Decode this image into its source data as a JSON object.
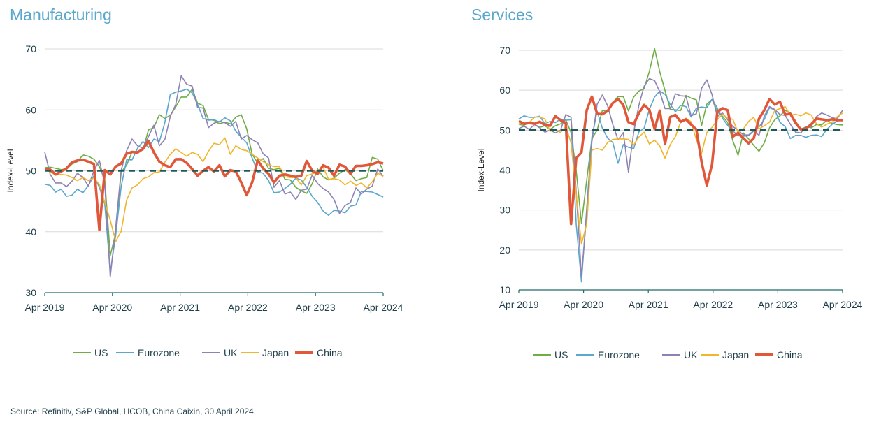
{
  "source": "Source: Refinitiv, S&P Global, HCOB, China Caixin, 30 April 2024.",
  "colors": {
    "US": "#70ad47",
    "Eurozone": "#5aa7cc",
    "UK": "#8e82b4",
    "Japan": "#f2b52b",
    "China": "#e0573a",
    "ref_line": "#1d5a5a",
    "grid": "#d9d9d9",
    "axis": "#1f6b6b"
  },
  "chart_data": [
    {
      "type": "line",
      "title": "Manufacturing",
      "ylabel": "Index-Level",
      "ylim": [
        30,
        70
      ],
      "yticks": [
        "30",
        "40",
        "50",
        "60",
        "70"
      ],
      "xticks": [
        "Apr 2019",
        "Apr 2020",
        "Apr 2021",
        "Apr 2022",
        "Apr 2023",
        "Apr 2024"
      ],
      "reference_line": 50,
      "x_note": "monthly, Apr 2019 to Apr 2024",
      "series": [
        {
          "name": "US",
          "values": [
            50.5,
            50.6,
            50.4,
            50.2,
            50.3,
            51.1,
            51.5,
            52.6,
            52.4,
            51.9,
            50.7,
            48.5,
            36.1,
            39.8,
            49.8,
            50.9,
            53.1,
            53.2,
            53.4,
            56.7,
            57.1,
            59.2,
            58.6,
            59.1,
            60.5,
            62.1,
            62.1,
            63.4,
            61.1,
            60.7,
            58.4,
            58.3,
            57.7,
            58.0,
            57.7,
            58.8,
            59.2,
            56.9,
            52.7,
            51.3,
            52.0,
            50.4,
            50.2,
            50.4,
            48.6,
            48.5,
            47.3,
            46.7,
            46.3,
            47.9,
            50.3,
            49.0,
            48.5,
            48.8,
            49.6,
            50.2,
            49.5,
            48.4,
            48.7,
            48.9,
            52.2,
            51.9,
            50.0
          ],
          "estimated": true
        },
        {
          "name": "Eurozone",
          "values": [
            47.8,
            47.6,
            46.5,
            47.0,
            45.8,
            46.0,
            47.0,
            46.4,
            47.6,
            49.2,
            47.3,
            44.5,
            33.4,
            39.4,
            47.4,
            51.8,
            51.8,
            53.7,
            54.8,
            53.8,
            55.2,
            54.8,
            57.9,
            62.5,
            62.9,
            63.1,
            63.4,
            62.8,
            60.9,
            58.6,
            58.3,
            58.4,
            58.0,
            58.7,
            58.2,
            56.5,
            55.5,
            54.6,
            52.1,
            49.8,
            49.6,
            48.4,
            46.4,
            46.5,
            47.1,
            47.8,
            48.8,
            48.5,
            47.3,
            45.8,
            44.8,
            43.4,
            42.7,
            43.5,
            43.4,
            43.1,
            44.2,
            44.4,
            46.6,
            46.6,
            46.5,
            46.1,
            45.7
          ],
          "estimated": true
        },
        {
          "name": "UK",
          "values": [
            53.1,
            49.4,
            48.0,
            48.0,
            47.4,
            48.3,
            49.6,
            48.9,
            47.5,
            50.0,
            51.7,
            47.8,
            32.6,
            40.7,
            50.1,
            53.3,
            55.2,
            54.1,
            53.7,
            55.6,
            57.5,
            54.1,
            55.1,
            58.9,
            60.9,
            65.6,
            64.2,
            63.9,
            60.4,
            60.3,
            57.1,
            57.8,
            58.1,
            57.9,
            57.3,
            58.1,
            55.2,
            55.8,
            55.1,
            54.6,
            52.8,
            52.1,
            47.3,
            48.4,
            46.2,
            46.5,
            45.3,
            46.8,
            47.0,
            49.3,
            47.9,
            47.1,
            46.5,
            45.3,
            43.0,
            44.3,
            44.8,
            47.2,
            46.2,
            47.0,
            47.5,
            50.3,
            49.1
          ],
          "estimated": true
        },
        {
          "name": "Japan",
          "values": [
            50.2,
            49.8,
            49.3,
            49.4,
            49.3,
            48.9,
            48.4,
            48.9,
            48.4,
            48.8,
            47.8,
            44.8,
            41.9,
            38.4,
            40.1,
            45.2,
            47.2,
            47.7,
            48.7,
            49.0,
            49.7,
            49.8,
            51.4,
            52.7,
            53.6,
            53.0,
            52.4,
            53.0,
            52.7,
            51.5,
            53.2,
            54.5,
            54.3,
            55.4,
            52.7,
            54.1,
            53.5,
            53.3,
            52.7,
            52.1,
            51.5,
            51.0,
            50.7,
            50.7,
            49.0,
            48.9,
            48.9,
            47.7,
            49.2,
            49.5,
            49.8,
            50.6,
            48.6,
            48.7,
            48.5,
            47.7,
            48.3,
            47.6,
            48.0,
            47.2,
            48.2,
            49.6,
            49.1
          ],
          "estimated": true
        },
        {
          "name": "China",
          "values": [
            50.2,
            50.2,
            49.4,
            49.9,
            50.4,
            51.4,
            51.7,
            51.8,
            51.5,
            51.1,
            40.3,
            50.1,
            49.4,
            50.7,
            51.2,
            52.8,
            53.1,
            53.0,
            53.6,
            54.9,
            53.0,
            51.5,
            50.9,
            50.6,
            51.9,
            51.9,
            51.3,
            50.3,
            49.2,
            50.0,
            50.6,
            49.9,
            50.9,
            49.1,
            50.1,
            49.9,
            48.1,
            46.0,
            48.1,
            51.7,
            50.4,
            49.5,
            48.1,
            49.2,
            49.4,
            49.2,
            49.0,
            49.2,
            51.6,
            50.0,
            49.5,
            50.9,
            50.5,
            49.2,
            51.0,
            50.7,
            49.5,
            50.8,
            50.8,
            50.9,
            51.1,
            51.4,
            51.2
          ],
          "estimated": true
        }
      ]
    },
    {
      "type": "line",
      "title": "Services",
      "ylabel": "Index-Level",
      "ylim": [
        10,
        70
      ],
      "yticks": [
        "10",
        "20",
        "30",
        "40",
        "50",
        "60",
        "70"
      ],
      "xticks": [
        "Apr 2019",
        "Apr 2020",
        "Apr 2021",
        "Apr 2022",
        "Apr 2023",
        "Apr 2024"
      ],
      "reference_line": 50,
      "x_note": "monthly, Apr 2019 to Apr 2024",
      "series": [
        {
          "name": "US",
          "values": [
            51.5,
            51.2,
            52.1,
            51.5,
            50.7,
            51.1,
            50.2,
            51.1,
            51.6,
            52.6,
            49.4,
            39.8,
            26.7,
            37.5,
            47.9,
            50.0,
            55.0,
            54.6,
            56.9,
            58.4,
            58.4,
            54.8,
            58.3,
            59.8,
            60.4,
            64.7,
            70.4,
            64.6,
            59.9,
            55.2,
            55.1,
            54.9,
            58.7,
            58.0,
            57.6,
            51.2,
            56.5,
            57.7,
            54.7,
            53.5,
            51.9,
            47.3,
            43.7,
            49.3,
            47.8,
            46.2,
            44.7,
            46.8,
            50.6,
            52.6,
            53.6,
            54.9,
            54.4,
            52.3,
            50.1,
            50.9,
            50.6,
            51.4,
            51.3,
            52.5,
            51.7,
            51.4,
            51.3
          ],
          "estimated": true
        },
        {
          "name": "Eurozone",
          "values": [
            52.8,
            53.6,
            53.2,
            53.2,
            53.5,
            51.6,
            52.2,
            51.9,
            52.8,
            52.5,
            52.6,
            26.4,
            12.0,
            30.5,
            48.3,
            54.7,
            50.5,
            48.0,
            46.9,
            41.7,
            46.4,
            45.7,
            45.4,
            49.6,
            50.5,
            55.2,
            58.3,
            59.8,
            59.0,
            56.4,
            54.6,
            56.2,
            55.9,
            53.3,
            55.5,
            55.8,
            55.6,
            57.7,
            55.6,
            53.0,
            51.2,
            49.8,
            48.6,
            48.5,
            48.6,
            49.8,
            50.8,
            52.7,
            55.6,
            55.1,
            52.0,
            50.9,
            47.9,
            48.7,
            48.7,
            48.2,
            48.7,
            48.8,
            48.4,
            50.2,
            51.5,
            52.3,
            52.7
          ],
          "estimated": true
        },
        {
          "name": "UK",
          "values": [
            50.4,
            51.0,
            50.2,
            51.4,
            50.6,
            49.5,
            50.0,
            49.3,
            50.0,
            53.9,
            53.2,
            34.5,
            13.4,
            29.0,
            47.1,
            56.5,
            58.8,
            56.1,
            51.4,
            47.6,
            49.4,
            39.5,
            49.5,
            56.3,
            61.0,
            62.9,
            62.4,
            59.6,
            55.4,
            55.4,
            59.1,
            58.6,
            58.5,
            53.6,
            54.1,
            60.5,
            62.6,
            58.9,
            53.4,
            54.3,
            52.6,
            50.9,
            50.0,
            48.8,
            48.8,
            49.9,
            48.7,
            53.5,
            55.9,
            55.2,
            53.9,
            53.7,
            51.5,
            49.5,
            49.3,
            50.9,
            50.9,
            53.4,
            54.3,
            53.8,
            53.1,
            52.9,
            55.0
          ],
          "estimated": true
        },
        {
          "name": "Japan",
          "values": [
            51.8,
            51.7,
            51.9,
            53.3,
            53.3,
            52.8,
            49.7,
            50.3,
            49.4,
            51.0,
            46.8,
            33.8,
            21.5,
            26.5,
            45.0,
            45.4,
            45.0,
            46.9,
            47.7,
            47.8,
            47.8,
            47.7,
            46.3,
            48.3,
            49.5,
            46.5,
            47.5,
            46.0,
            43.0,
            46.4,
            48.4,
            52.1,
            53.0,
            52.1,
            47.6,
            44.2,
            49.4,
            50.7,
            52.6,
            54.0,
            53.0,
            52.7,
            49.4,
            50.3,
            52.2,
            53.2,
            50.3,
            51.1,
            52.0,
            54.9,
            55.4,
            55.9,
            53.8,
            54.0,
            53.6,
            54.3,
            53.8,
            51.6,
            50.8,
            51.5,
            52.0,
            53.4,
            54.3
          ],
          "estimated": true
        },
        {
          "name": "China",
          "values": [
            52.3,
            51.6,
            51.8,
            51.6,
            52.1,
            51.3,
            51.1,
            53.5,
            52.5,
            51.8,
            26.5,
            43.0,
            44.4,
            55.0,
            58.4,
            54.1,
            54.0,
            54.8,
            56.8,
            57.8,
            56.3,
            52.0,
            51.5,
            54.3,
            56.3,
            55.1,
            50.3,
            54.9,
            46.5,
            53.3,
            53.8,
            52.1,
            52.7,
            51.4,
            50.2,
            42.0,
            36.2,
            41.4,
            54.5,
            55.5,
            55.0,
            48.4,
            49.3,
            48.0,
            46.7,
            48.0,
            52.9,
            55.0,
            57.8,
            56.4,
            57.1,
            53.9,
            54.1,
            51.8,
            50.2,
            50.4,
            51.5,
            52.9,
            52.7,
            52.5,
            52.7,
            52.5,
            52.5
          ],
          "estimated": true
        }
      ]
    }
  ]
}
